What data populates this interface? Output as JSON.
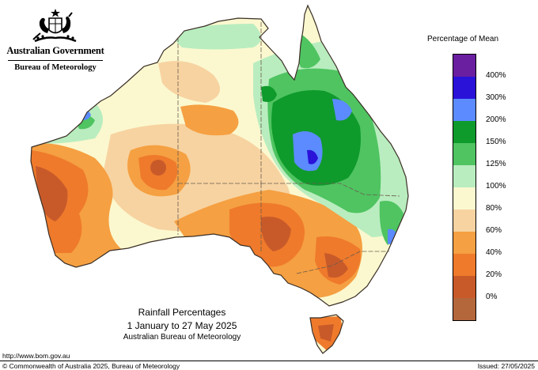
{
  "header": {
    "government": "Australian Government",
    "bureau": "Bureau of Meteorology",
    "crest_icon": "coat-of-arms-icon"
  },
  "legend": {
    "title": "Percentage of Mean",
    "labels": [
      "400%",
      "300%",
      "200%",
      "150%",
      "125%",
      "100%",
      "80%",
      "60%",
      "40%",
      "20%",
      "0%"
    ],
    "colors": [
      "#6a1fa0",
      "#2a12d8",
      "#5b8bff",
      "#0f9a2c",
      "#4fc461",
      "#b9edbf",
      "#fbf8cf",
      "#f7d3a1",
      "#f5a042",
      "#ef7a2b",
      "#c85a2a",
      "#b5673c"
    ]
  },
  "map": {
    "region": "Australia",
    "ocean_color": "#ffffff",
    "boundary_color": "#6b5b4e"
  },
  "caption": {
    "title": "Rainfall Percentages",
    "date_range": "1 January to 27 May 2025",
    "source": "Australian Bureau of Meteorology"
  },
  "footer": {
    "url": "http://www.bom.gov.au",
    "copyright": "© Commonwealth of Australia 2025, Bureau of Meteorology",
    "issued": "Issued: 27/05/2025"
  }
}
